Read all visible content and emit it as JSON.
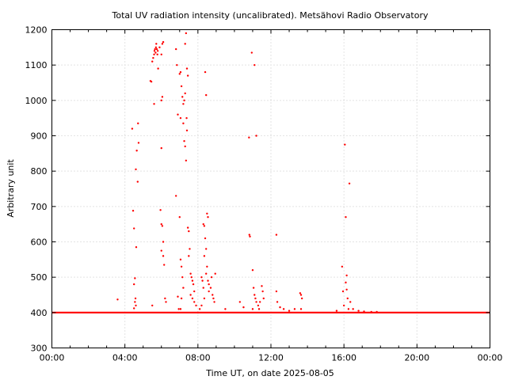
{
  "chart_data": {
    "type": "scatter",
    "title": "Total UV radiation intensity (uncalibrated). Metsähovi Radio Observatory",
    "xlabel": "Time UT, on date 2025-08-05",
    "ylabel": "Arbitrary unit",
    "xlim": [
      0,
      24
    ],
    "ylim": [
      300,
      1200
    ],
    "x_ticks": [
      0,
      4,
      8,
      12,
      16,
      20,
      24
    ],
    "x_tick_labels": [
      "00:00",
      "04:00",
      "08:00",
      "12:00",
      "16:00",
      "20:00",
      "00:00"
    ],
    "y_ticks": [
      300,
      400,
      500,
      600,
      700,
      800,
      900,
      1000,
      1100,
      1200
    ],
    "y_tick_labels": [
      "300",
      "400",
      "500",
      "600",
      "700",
      "800",
      "900",
      "1000",
      "1100",
      "1200"
    ],
    "grid": true,
    "marker_color": "#ff0000",
    "baseline": {
      "value": 400,
      "x_range": [
        0,
        24
      ]
    },
    "series": [
      {
        "points": [
          [
            3.6,
            437
          ],
          [
            4.4,
            920
          ],
          [
            4.45,
            688
          ],
          [
            4.5,
            638
          ],
          [
            4.55,
            497
          ],
          [
            4.6,
            805
          ],
          [
            4.62,
            585
          ],
          [
            4.65,
            858
          ],
          [
            4.7,
            770
          ],
          [
            4.72,
            935
          ],
          [
            4.75,
            880
          ],
          [
            4.5,
            480
          ],
          [
            4.55,
            430
          ],
          [
            4.6,
            420
          ],
          [
            4.58,
            440
          ],
          [
            4.5,
            412
          ],
          [
            5.4,
            1055
          ],
          [
            5.45,
            1053
          ],
          [
            5.5,
            1110
          ],
          [
            5.55,
            1120
          ],
          [
            5.6,
            1130
          ],
          [
            5.62,
            1140
          ],
          [
            5.65,
            1145
          ],
          [
            5.68,
            1135
          ],
          [
            5.7,
            1150
          ],
          [
            5.72,
            1160
          ],
          [
            5.75,
            1145
          ],
          [
            5.78,
            1130
          ],
          [
            5.8,
            1140
          ],
          [
            5.82,
            1090
          ],
          [
            5.6,
            990
          ],
          [
            5.9,
            1150
          ],
          [
            6.0,
            1130
          ],
          [
            6.05,
            1160
          ],
          [
            6.1,
            1165
          ],
          [
            6.0,
            1000
          ],
          [
            6.05,
            1010
          ],
          [
            5.95,
            690
          ],
          [
            6.0,
            650
          ],
          [
            6.05,
            645
          ],
          [
            6.1,
            600
          ],
          [
            6.0,
            575
          ],
          [
            6.1,
            560
          ],
          [
            6.15,
            535
          ],
          [
            6.0,
            865
          ],
          [
            6.2,
            440
          ],
          [
            6.25,
            430
          ],
          [
            5.5,
            420
          ],
          [
            6.8,
            1145
          ],
          [
            6.85,
            1100
          ],
          [
            6.9,
            960
          ],
          [
            6.8,
            730
          ],
          [
            7.0,
            670
          ],
          [
            7.05,
            550
          ],
          [
            7.1,
            530
          ],
          [
            7.15,
            500
          ],
          [
            7.2,
            470
          ],
          [
            7.0,
            1075
          ],
          [
            7.05,
            1080
          ],
          [
            7.1,
            1040
          ],
          [
            7.15,
            1010
          ],
          [
            7.2,
            990
          ],
          [
            7.25,
            1000
          ],
          [
            7.3,
            1020
          ],
          [
            7.35,
            1190
          ],
          [
            7.3,
            1160
          ],
          [
            7.4,
            1090
          ],
          [
            7.45,
            1070
          ],
          [
            7.38,
            950
          ],
          [
            7.4,
            915
          ],
          [
            7.25,
            885
          ],
          [
            7.3,
            870
          ],
          [
            7.35,
            830
          ],
          [
            7.2,
            935
          ],
          [
            7.05,
            950
          ],
          [
            7.45,
            640
          ],
          [
            7.5,
            630
          ],
          [
            7.55,
            580
          ],
          [
            7.5,
            560
          ],
          [
            7.6,
            510
          ],
          [
            7.65,
            500
          ],
          [
            7.7,
            490
          ],
          [
            7.75,
            480
          ],
          [
            7.8,
            460
          ],
          [
            7.6,
            450
          ],
          [
            7.7,
            440
          ],
          [
            7.8,
            430
          ],
          [
            7.9,
            420
          ],
          [
            7.1,
            440
          ],
          [
            7.05,
            410
          ],
          [
            6.9,
            445
          ],
          [
            6.95,
            410
          ],
          [
            8.3,
            650
          ],
          [
            8.35,
            645
          ],
          [
            8.4,
            1080
          ],
          [
            8.45,
            1015
          ],
          [
            8.5,
            680
          ],
          [
            8.55,
            670
          ],
          [
            8.4,
            610
          ],
          [
            8.45,
            580
          ],
          [
            8.35,
            560
          ],
          [
            8.5,
            530
          ],
          [
            8.45,
            510
          ],
          [
            8.55,
            490
          ],
          [
            8.6,
            480
          ],
          [
            8.6,
            460
          ],
          [
            8.7,
            470
          ],
          [
            8.75,
            500
          ],
          [
            8.8,
            450
          ],
          [
            8.85,
            440
          ],
          [
            8.9,
            430
          ],
          [
            8.95,
            510
          ],
          [
            8.2,
            500
          ],
          [
            8.25,
            490
          ],
          [
            8.3,
            470
          ],
          [
            8.35,
            440
          ],
          [
            8.2,
            420
          ],
          [
            8.1,
            410
          ],
          [
            8.0,
            400
          ],
          [
            9.5,
            410
          ],
          [
            10.3,
            430
          ],
          [
            10.5,
            415
          ],
          [
            10.8,
            895
          ],
          [
            10.82,
            620
          ],
          [
            10.85,
            615
          ],
          [
            10.95,
            1135
          ],
          [
            11.1,
            1100
          ],
          [
            11.2,
            900
          ],
          [
            11.0,
            520
          ],
          [
            11.05,
            470
          ],
          [
            11.1,
            450
          ],
          [
            11.15,
            440
          ],
          [
            11.2,
            430
          ],
          [
            11.3,
            420
          ],
          [
            11.35,
            410
          ],
          [
            11.4,
            430
          ],
          [
            11.5,
            475
          ],
          [
            11.55,
            460
          ],
          [
            11.6,
            440
          ],
          [
            11.0,
            410
          ],
          [
            12.3,
            620
          ],
          [
            12.3,
            460
          ],
          [
            12.35,
            430
          ],
          [
            12.5,
            415
          ],
          [
            12.7,
            410
          ],
          [
            13.0,
            405
          ],
          [
            13.3,
            410
          ],
          [
            13.6,
            455
          ],
          [
            13.65,
            450
          ],
          [
            13.7,
            440
          ],
          [
            13.65,
            410
          ],
          [
            15.6,
            405
          ],
          [
            15.9,
            530
          ],
          [
            15.95,
            460
          ],
          [
            16.0,
            420
          ],
          [
            16.05,
            875
          ],
          [
            16.1,
            670
          ],
          [
            16.15,
            505
          ],
          [
            16.1,
            485
          ],
          [
            16.15,
            465
          ],
          [
            16.3,
            765
          ],
          [
            16.35,
            430
          ],
          [
            16.5,
            410
          ],
          [
            16.8,
            405
          ],
          [
            17.1,
            403
          ],
          [
            17.5,
            402
          ],
          [
            17.8,
            402
          ],
          [
            16.2,
            440
          ],
          [
            16.25,
            410
          ]
        ]
      }
    ]
  }
}
